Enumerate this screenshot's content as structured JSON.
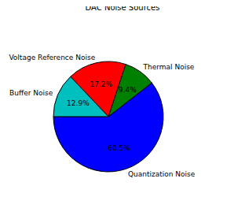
{
  "chart_data": {
    "type": "pie",
    "title": "DAC Noise Sources",
    "categories": [
      "Quantization Noise",
      "Thermal Noise",
      "Voltage Reference Noise",
      "Buffer Noise"
    ],
    "values": [
      60.5,
      9.4,
      17.2,
      12.9
    ],
    "value_labels": [
      "60.5%",
      "9.4%",
      "17.2%",
      "12.9%"
    ],
    "colors": [
      "#0000ff",
      "#008000",
      "#ff0000",
      "#00bfbf"
    ],
    "data_labels": true
  }
}
